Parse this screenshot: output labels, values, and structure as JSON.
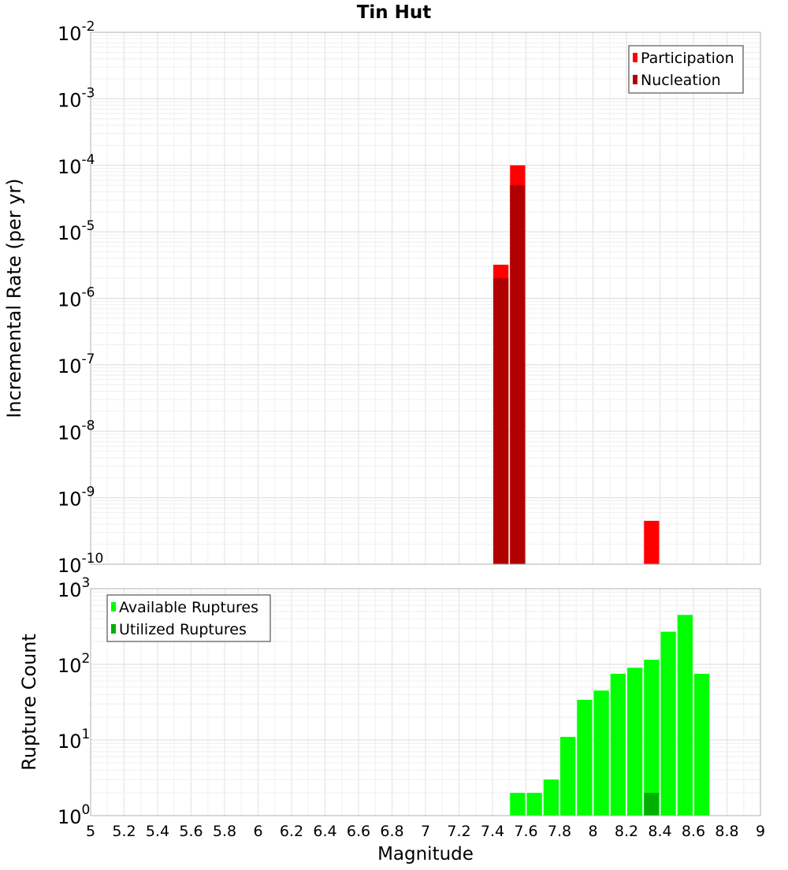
{
  "chart_data": [
    {
      "type": "bar",
      "title": "Tin Hut",
      "xlabel": "",
      "ylabel": "Incremental Rate (per yr)",
      "y_scale": "log",
      "y_exponent_range": [
        -10,
        -2
      ],
      "y_tick_labels": [
        {
          "base": "10",
          "exp": "-10"
        },
        {
          "base": "10",
          "exp": "-9"
        },
        {
          "base": "10",
          "exp": "-8"
        },
        {
          "base": "10",
          "exp": "-7"
        },
        {
          "base": "10",
          "exp": "-6"
        },
        {
          "base": "10",
          "exp": "-5"
        },
        {
          "base": "10",
          "exp": "-4"
        },
        {
          "base": "10",
          "exp": "-3"
        },
        {
          "base": "10",
          "exp": "-2"
        }
      ],
      "xlim": [
        5,
        9
      ],
      "bin_width": 0.1,
      "grid": true,
      "legend_position": "top-right",
      "series": [
        {
          "name": "Participation",
          "color": "#ff0000",
          "points": [
            [
              7.45,
              3.2e-06
            ],
            [
              7.55,
              0.0001
            ],
            [
              8.35,
              4.5e-10
            ]
          ]
        },
        {
          "name": "Nucleation",
          "color": "#b00000",
          "points": [
            [
              7.45,
              2e-06
            ],
            [
              7.55,
              5e-05
            ]
          ]
        }
      ]
    },
    {
      "type": "bar",
      "title": "",
      "xlabel": "Magnitude",
      "ylabel": "Rupture Count",
      "y_scale": "log",
      "y_exponent_range": [
        0,
        3
      ],
      "y_tick_labels": [
        {
          "base": "10",
          "exp": "0"
        },
        {
          "base": "10",
          "exp": "1"
        },
        {
          "base": "10",
          "exp": "2"
        },
        {
          "base": "10",
          "exp": "3"
        }
      ],
      "xlim": [
        5,
        9
      ],
      "bin_width": 0.1,
      "grid": true,
      "legend_position": "top-left",
      "x_tick_labels": [
        "5",
        "5.2",
        "5.4",
        "5.6",
        "5.8",
        "6",
        "6.2",
        "6.4",
        "6.6",
        "6.8",
        "7",
        "7.2",
        "7.4",
        "7.6",
        "7.8",
        "8",
        "8.2",
        "8.4",
        "8.6",
        "8.8",
        "9"
      ],
      "series": [
        {
          "name": "Available Ruptures",
          "color": "#00ff00",
          "points": [
            [
              7.25,
              1
            ],
            [
              7.45,
              1
            ],
            [
              7.55,
              2
            ],
            [
              7.65,
              2
            ],
            [
              7.75,
              3
            ],
            [
              7.85,
              11
            ],
            [
              7.95,
              34
            ],
            [
              8.05,
              45
            ],
            [
              8.15,
              75
            ],
            [
              8.25,
              90
            ],
            [
              8.35,
              115
            ],
            [
              8.45,
              270
            ],
            [
              8.55,
              450
            ],
            [
              8.65,
              75
            ]
          ]
        },
        {
          "name": "Utilized Ruptures",
          "color": "#00b000",
          "points": [
            [
              7.45,
              1
            ],
            [
              7.55,
              1
            ],
            [
              8.05,
              1
            ],
            [
              8.35,
              2
            ]
          ]
        }
      ]
    }
  ]
}
